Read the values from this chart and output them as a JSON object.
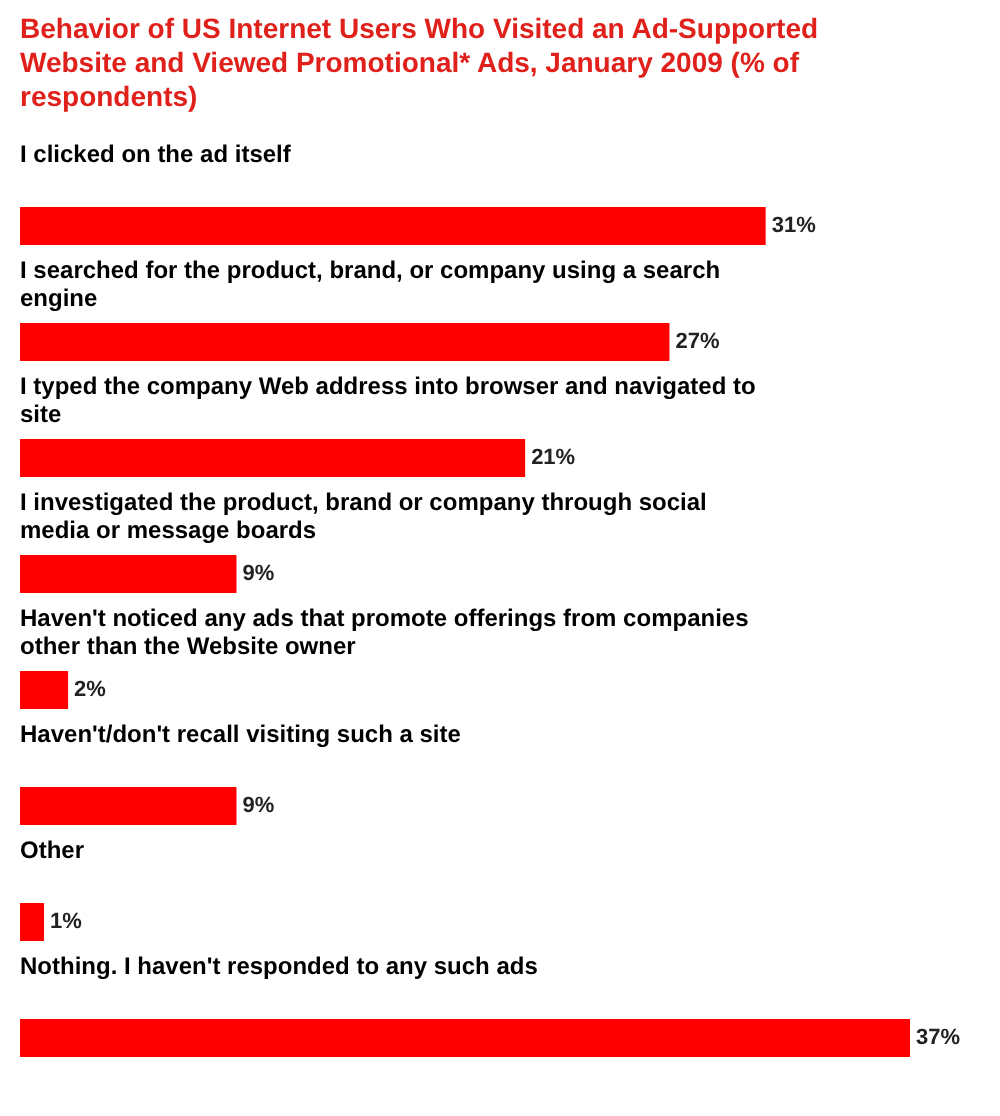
{
  "chart_data": {
    "type": "bar",
    "orientation": "horizontal",
    "title": "Behavior of US Internet Users Who Visited an Ad-Supported Website and Viewed Promotional* Ads, January 2009 (% of respondents)",
    "categories": [
      "I clicked on the ad itself",
      "I searched for the product, brand, or company using a search engine",
      "I typed the company Web address into browser and navigated to site",
      "I investigated the product, brand or company through social media or message boards",
      "Haven't noticed any ads that promote offerings from companies other than the Website owner",
      "Haven't/don't recall visiting such a site",
      "Other",
      "Nothing. I haven't responded to any such ads"
    ],
    "values": [
      31,
      27,
      21,
      9,
      2,
      9,
      1,
      37
    ],
    "value_labels": [
      "31%",
      "27%",
      "21%",
      "9%",
      "2%",
      "9%",
      "1%",
      "37%"
    ],
    "color": "#ff0000"
  }
}
